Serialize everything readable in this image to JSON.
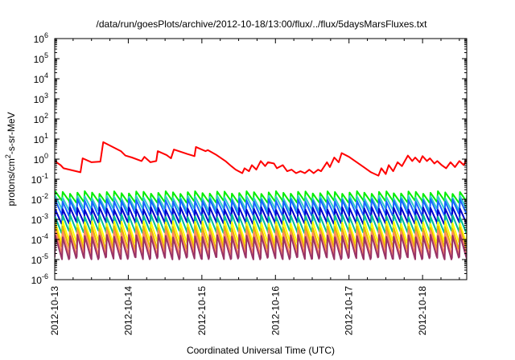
{
  "chart_data": {
    "type": "line",
    "title": "/data/run/goesPlots/archive/2012-10-18/13:00/flux/../flux/5daysMarsFluxes.txt",
    "xlabel": "Coordinated Universal Time (UTC)",
    "ylabel_prefix": "protons/cm",
    "ylabel_sup": "2",
    "ylabel_suffix": "-s-sr-MeV",
    "yscale": "log",
    "ylim_exp": [
      -6,
      6
    ],
    "y_ticks": [
      {
        "base": "10",
        "exp": "-6"
      },
      {
        "base": "10",
        "exp": "-5"
      },
      {
        "base": "10",
        "exp": "-4"
      },
      {
        "base": "10",
        "exp": "-3"
      },
      {
        "base": "10",
        "exp": "-2"
      },
      {
        "base": "10",
        "exp": "-1"
      },
      {
        "base": "10",
        "exp": "0"
      },
      {
        "base": "10",
        "exp": "1"
      },
      {
        "base": "10",
        "exp": "2"
      },
      {
        "base": "10",
        "exp": "3"
      },
      {
        "base": "10",
        "exp": "4"
      },
      {
        "base": "10",
        "exp": "5"
      },
      {
        "base": "10",
        "exp": "6"
      }
    ],
    "x_tick_labels": [
      "2012-10-13",
      "2012-10-14",
      "2012-10-15",
      "2012-10-16",
      "2012-10-17",
      "2012-10-18"
    ],
    "x_range_days": [
      0,
      5.6
    ],
    "grid": false,
    "legend": "none",
    "series": [
      {
        "color": "#ff0000",
        "shape": "stepped",
        "x": [
          0.0,
          0.08,
          0.12,
          0.35,
          0.38,
          0.5,
          0.62,
          0.66,
          0.9,
          0.96,
          1.05,
          1.18,
          1.22,
          1.3,
          1.38,
          1.4,
          1.52,
          1.58,
          1.62,
          1.8,
          1.9,
          1.92,
          2.05,
          2.08,
          2.2,
          2.32,
          2.4,
          2.46,
          2.55,
          2.58,
          2.64,
          2.68,
          2.74,
          2.8,
          2.86,
          2.9,
          2.98,
          3.02,
          3.1,
          3.16,
          3.22,
          3.28,
          3.34,
          3.4,
          3.46,
          3.52,
          3.58,
          3.62,
          3.7,
          3.74,
          3.8,
          3.86,
          3.9,
          4.0,
          4.2,
          4.3,
          4.4,
          4.44,
          4.5,
          4.54,
          4.6,
          4.66,
          4.72,
          4.8,
          4.86,
          4.9,
          4.96,
          5.0,
          5.06,
          5.1,
          5.16,
          5.2,
          5.26,
          5.32,
          5.38,
          5.44,
          5.5,
          5.56,
          5.6
        ],
        "y": [
          0.8,
          0.5,
          0.35,
          0.22,
          1.1,
          0.7,
          0.75,
          7.0,
          2.5,
          1.5,
          1.2,
          0.8,
          1.3,
          0.7,
          0.8,
          2.5,
          1.6,
          1.1,
          3.0,
          1.8,
          1.4,
          4.0,
          2.5,
          2.8,
          1.6,
          0.8,
          0.45,
          0.3,
          0.2,
          0.35,
          0.25,
          0.5,
          0.3,
          0.8,
          0.45,
          0.7,
          0.6,
          0.35,
          0.5,
          0.25,
          0.3,
          0.2,
          0.25,
          0.2,
          0.3,
          0.2,
          0.3,
          0.25,
          0.7,
          0.4,
          1.2,
          0.7,
          2.0,
          1.3,
          0.4,
          0.22,
          0.15,
          0.35,
          0.18,
          0.5,
          0.25,
          0.7,
          0.45,
          1.5,
          0.8,
          1.2,
          0.7,
          1.4,
          0.8,
          1.1,
          0.6,
          0.8,
          0.5,
          0.35,
          0.7,
          0.4,
          0.8,
          0.5,
          1.0
        ]
      },
      {
        "color": "#00ee00",
        "shape": "sawtooth",
        "period": 0.1,
        "high": 0.022,
        "low": 0.008
      },
      {
        "color": "#33cccc",
        "shape": "sawtooth",
        "period": 0.1,
        "high": 0.013,
        "low": 0.0032
      },
      {
        "color": "#1a66ff",
        "shape": "sawtooth",
        "period": 0.1,
        "high": 0.009,
        "low": 0.0018
      },
      {
        "color": "#0000cc",
        "shape": "sawtooth",
        "period": 0.1,
        "high": 0.0035,
        "low": 0.0007
      },
      {
        "color": "#00bb99",
        "shape": "sawtooth",
        "period": 0.1,
        "high": 0.0015,
        "low": 0.00025
      },
      {
        "color": "#ffff00",
        "shape": "sawtooth",
        "period": 0.1,
        "high": 0.0007,
        "low": 8e-05
      },
      {
        "color": "#e8b400",
        "shape": "sawtooth",
        "period": 0.1,
        "high": 0.0004,
        "low": 4e-05
      },
      {
        "color": "#ff8866",
        "shape": "sawtooth",
        "period": 0.1,
        "high": 0.00025,
        "low": 2e-05
      },
      {
        "color": "#993366",
        "shape": "sawtooth",
        "period": 0.1,
        "high": 0.00015,
        "low": 1.2e-05
      }
    ]
  }
}
